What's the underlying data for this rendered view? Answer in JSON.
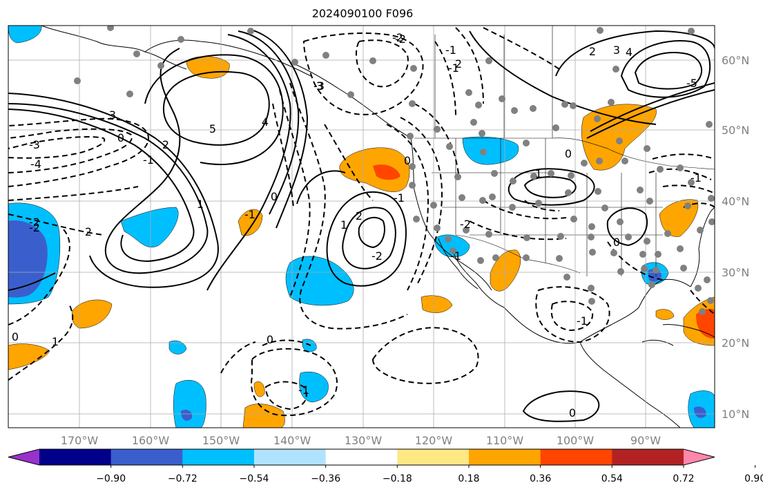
{
  "title": "2024090100 F096",
  "longitude_labels": [
    "170°W",
    "160°W",
    "150°W",
    "140°W",
    "130°W",
    "120°W",
    "110°W",
    "100°W",
    "90°W"
  ],
  "latitude_labels": [
    "60°N",
    "50°N",
    "40°N",
    "30°N",
    "20°N",
    "10°N"
  ],
  "contour_labels": [
    "-2",
    "3",
    "-3",
    "-4",
    "0",
    "2",
    "-1",
    "-2",
    "2",
    "5",
    "4",
    "3",
    "2",
    "1",
    "-1",
    "0",
    "2",
    "1",
    "-2",
    "-1",
    "0",
    "1",
    "0",
    "2",
    "3",
    "-5",
    "4",
    "-1",
    "-1",
    "-2",
    "0",
    "0",
    "-1",
    "0",
    "1",
    "-3",
    "-2",
    "-1",
    "-1",
    "-2",
    "-1",
    "0"
  ],
  "colorbar": {
    "colors": [
      "#9932cc",
      "#00008b",
      "#3a5fcd",
      "#00bfff",
      "#afe3ff",
      "#ffffff",
      "#ffe884",
      "#ffa500",
      "#ff4500",
      "#b22222",
      "#ff88aa"
    ],
    "tick_labels": [
      "−0.90",
      "−0.72",
      "−0.54",
      "−0.36",
      "−0.18",
      "0.18",
      "0.36",
      "0.54",
      "0.72",
      "0.90"
    ]
  },
  "colors": {
    "negative_shade": "#00bfff",
    "negative_strong": "#3a5fcd",
    "positive_shade": "#ffa500",
    "positive_strong": "#ff4500",
    "station_dot": "#808080",
    "gridline": "#aaaaaa"
  }
}
